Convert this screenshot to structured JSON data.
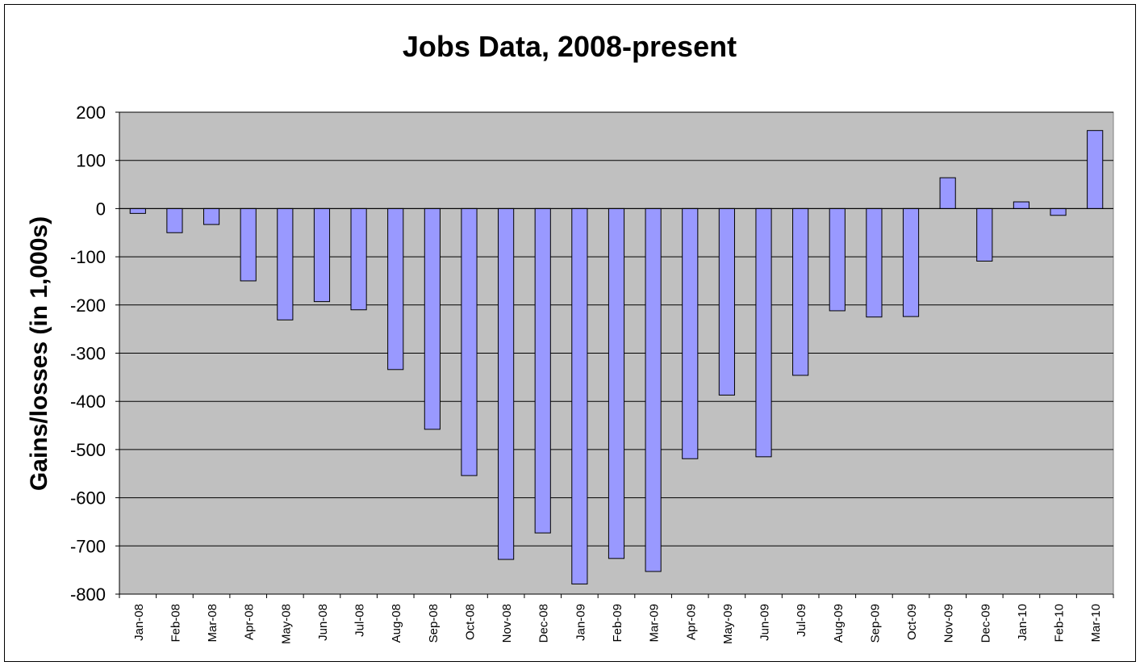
{
  "chart_data": {
    "type": "bar",
    "title": "Jobs Data, 2008-present",
    "xlabel": "",
    "ylabel": "Gains/losses (in 1,000s)",
    "ylim": [
      -800,
      200
    ],
    "ytick_step": 100,
    "yticks": [
      "200",
      "100",
      "0",
      "-100",
      "-200",
      "-300",
      "-400",
      "-500",
      "-600",
      "-700",
      "-800"
    ],
    "grid": true,
    "legend": "none",
    "categories": [
      "Jan-08",
      "Feb-08",
      "Mar-08",
      "Apr-08",
      "May-08",
      "Jun-08",
      "Jul-08",
      "Aug-08",
      "Sep-08",
      "Oct-08",
      "Nov-08",
      "Dec-08",
      "Jan-09",
      "Feb-09",
      "Mar-09",
      "Apr-09",
      "May-09",
      "Jun-09",
      "Jul-09",
      "Aug-09",
      "Sep-09",
      "Oct-09",
      "Nov-09",
      "Dec-09",
      "Jan-10",
      "Feb-10",
      "Mar-10"
    ],
    "values": [
      -10,
      -50,
      -33,
      -150,
      -231,
      -193,
      -210,
      -334,
      -458,
      -554,
      -728,
      -673,
      -779,
      -726,
      -753,
      -519,
      -387,
      -515,
      -346,
      -212,
      -225,
      -224,
      64,
      -109,
      14,
      -14,
      162
    ],
    "colors": {
      "bar_fill": "#9999ff",
      "bar_stroke": "#000000",
      "plot_background": "#c0c0c0",
      "gridline": "#000000",
      "text": "#000000"
    }
  }
}
